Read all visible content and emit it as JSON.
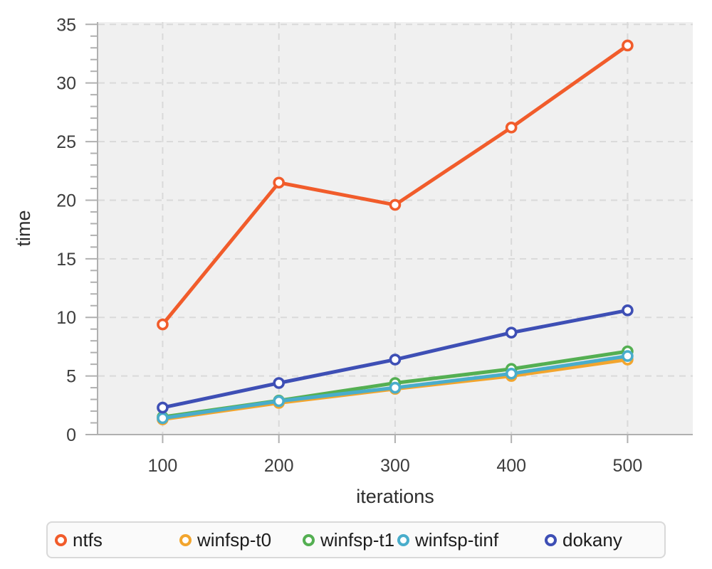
{
  "chart_data": {
    "type": "line",
    "title": "",
    "xlabel": "iterations",
    "ylabel": "time",
    "x": [
      100,
      200,
      300,
      400,
      500
    ],
    "series": [
      {
        "name": "ntfs",
        "color": "#f15c2b",
        "values": [
          9.4,
          21.5,
          19.6,
          26.2,
          33.2
        ]
      },
      {
        "name": "winfsp-t0",
        "color": "#f2a52e",
        "values": [
          1.3,
          2.7,
          3.9,
          5.0,
          6.4
        ]
      },
      {
        "name": "winfsp-t1",
        "color": "#54af52",
        "values": [
          1.5,
          2.9,
          4.4,
          5.6,
          7.1
        ]
      },
      {
        "name": "winfsp-tinf",
        "color": "#49adcb",
        "values": [
          1.4,
          2.85,
          4.0,
          5.2,
          6.7
        ]
      },
      {
        "name": "dokany",
        "color": "#3e4fb5",
        "values": [
          2.3,
          4.4,
          6.4,
          8.7,
          10.6
        ]
      }
    ],
    "x_ticks": [
      100,
      200,
      300,
      400,
      500
    ],
    "y_ticks_major": [
      0,
      5,
      10,
      15,
      20,
      25,
      30,
      35
    ],
    "y_minor_step": 1,
    "xlim": [
      44.6,
      556.1
    ],
    "ylim": [
      0,
      35.2
    ],
    "grid": "dashed",
    "legend_position": "bottom",
    "marker": "open-circle",
    "plot_background": "#f0f0f0",
    "grid_color": "#d9d9d9",
    "axis_color": "#b0b0b0",
    "tick_label_color": "#3d3d3d"
  }
}
